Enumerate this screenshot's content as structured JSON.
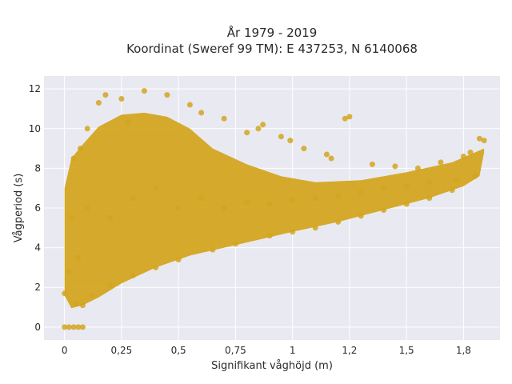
{
  "chart_data": {
    "type": "scatter",
    "title_line1": "År 1979 - 2019",
    "title_line2": "Koordinat (Sweref 99 TM): E 437253, N 6140068",
    "xlabel": "Signifikant våghöjd (m)",
    "ylabel": "Vågperiod (s)",
    "xlim": [
      -0.09,
      1.91
    ],
    "ylim": [
      -0.65,
      12.65
    ],
    "x_ticks": [
      0,
      0.25,
      0.5,
      0.75,
      1,
      1.25,
      1.5,
      1.75
    ],
    "x_tick_labels": [
      "0",
      "0,25",
      "0,5",
      "0,75",
      "1",
      "1,2",
      "1,5",
      "1,8"
    ],
    "y_ticks": [
      0,
      2,
      4,
      6,
      8,
      10,
      12
    ],
    "y_tick_labels": [
      "0",
      "2",
      "4",
      "6",
      "8",
      "10",
      "12"
    ],
    "grid": true,
    "background_color": "#e9e9f1",
    "marker_color": "#d4a520",
    "series": [
      {
        "points": [
          [
            0.0,
            0.0
          ],
          [
            0.02,
            0.0
          ],
          [
            0.04,
            0.0
          ],
          [
            0.06,
            0.0
          ],
          [
            0.08,
            0.0
          ],
          [
            0.0,
            1.7
          ],
          [
            0.02,
            2.8
          ],
          [
            0.03,
            5.5
          ],
          [
            0.04,
            8.5
          ],
          [
            0.05,
            1.2
          ],
          [
            0.06,
            3.5
          ],
          [
            0.07,
            9.0
          ],
          [
            0.08,
            1.1
          ],
          [
            0.1,
            10.0
          ],
          [
            0.12,
            1.6
          ],
          [
            0.15,
            11.3
          ],
          [
            0.18,
            11.7
          ],
          [
            0.2,
            2.1
          ],
          [
            0.25,
            11.5
          ],
          [
            0.28,
            10.3
          ],
          [
            0.3,
            2.6
          ],
          [
            0.35,
            11.9
          ],
          [
            0.4,
            3.0
          ],
          [
            0.45,
            11.7
          ],
          [
            0.5,
            3.4
          ],
          [
            0.55,
            11.2
          ],
          [
            0.6,
            10.8
          ],
          [
            0.65,
            3.9
          ],
          [
            0.7,
            10.5
          ],
          [
            0.75,
            4.2
          ],
          [
            0.8,
            9.8
          ],
          [
            0.85,
            10.0
          ],
          [
            0.9,
            4.6
          ],
          [
            0.95,
            9.6
          ],
          [
            1.0,
            4.8
          ],
          [
            1.05,
            9.0
          ],
          [
            1.1,
            5.0
          ],
          [
            1.15,
            8.7
          ],
          [
            1.2,
            5.3
          ],
          [
            1.25,
            10.6
          ],
          [
            1.3,
            5.6
          ],
          [
            1.35,
            8.2
          ],
          [
            1.4,
            5.9
          ],
          [
            1.45,
            8.1
          ],
          [
            1.5,
            6.2
          ],
          [
            1.55,
            8.0
          ],
          [
            1.6,
            6.5
          ],
          [
            1.65,
            8.3
          ],
          [
            1.7,
            6.9
          ],
          [
            1.75,
            8.6
          ],
          [
            1.8,
            7.6
          ],
          [
            1.82,
            9.5
          ],
          [
            1.84,
            9.4
          ],
          [
            1.78,
            8.8
          ],
          [
            1.72,
            7.4
          ],
          [
            0.1,
            6.0
          ],
          [
            0.2,
            5.5
          ],
          [
            0.3,
            6.5
          ],
          [
            0.4,
            7.0
          ],
          [
            0.5,
            6.0
          ],
          [
            0.6,
            6.5
          ],
          [
            0.7,
            6.0
          ],
          [
            0.8,
            6.3
          ],
          [
            0.9,
            6.2
          ],
          [
            1.0,
            6.4
          ],
          [
            1.1,
            6.5
          ],
          [
            1.2,
            6.6
          ],
          [
            1.3,
            6.8
          ],
          [
            1.4,
            7.0
          ],
          [
            1.5,
            7.1
          ],
          [
            1.6,
            7.3
          ],
          [
            0.87,
            10.2
          ],
          [
            0.99,
            9.4
          ],
          [
            1.23,
            10.5
          ],
          [
            1.17,
            8.5
          ]
        ]
      }
    ]
  }
}
